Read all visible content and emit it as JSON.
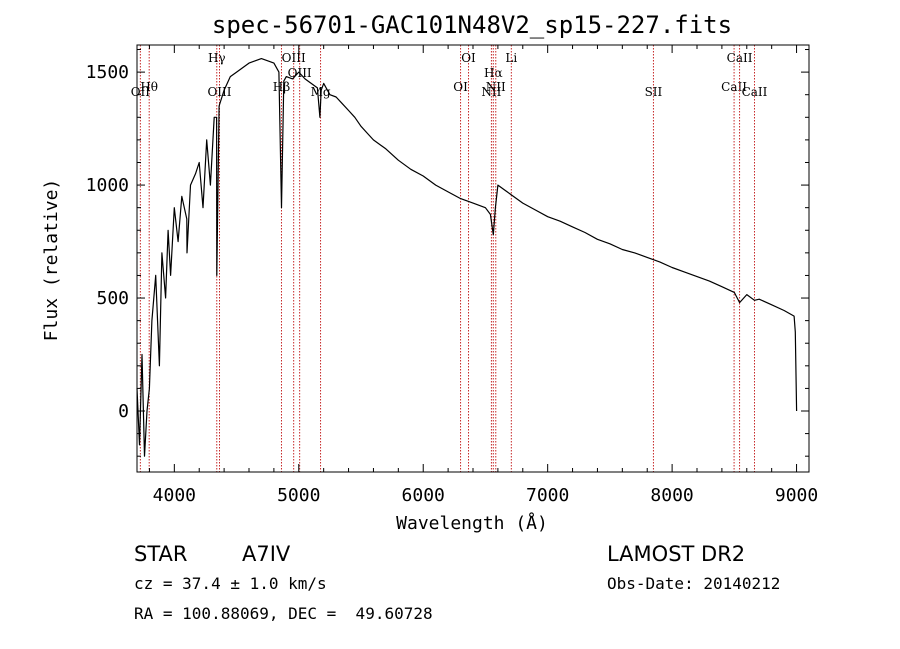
{
  "chart_data": {
    "type": "line",
    "title": "spec-56701-GAC101N48V2_sp15-227.fits",
    "xlabel": "Wavelength (Å)",
    "ylabel": "Flux (relative)",
    "xlim": [
      3700,
      9100
    ],
    "ylim": [
      -270,
      1620
    ],
    "x_ticks": [
      4000,
      5000,
      6000,
      7000,
      8000,
      9000
    ],
    "y_ticks": [
      0,
      500,
      1000,
      1500
    ],
    "grid": false,
    "series": [
      {
        "x": [
          3700,
          3720,
          3740,
          3760,
          3780,
          3800,
          3820,
          3850,
          3880,
          3900,
          3930,
          3950,
          3970,
          4000,
          4030,
          4060,
          4100,
          4102,
          4130,
          4170,
          4200,
          4230,
          4260,
          4290,
          4320,
          4340,
          4341,
          4360,
          4400,
          4450,
          4500,
          4550,
          4600,
          4650,
          4700,
          4750,
          4800,
          4840,
          4861,
          4880,
          4900,
          4950,
          5000,
          5050,
          5100,
          5150,
          5170,
          5180,
          5200,
          5250,
          5300,
          5350,
          5400,
          5450,
          5500,
          5550,
          5600,
          5700,
          5800,
          5900,
          6000,
          6100,
          6200,
          6300,
          6400,
          6500,
          6540,
          6563,
          6580,
          6600,
          6650,
          6700,
          6800,
          6900,
          7000,
          7100,
          7200,
          7300,
          7400,
          7500,
          7600,
          7700,
          7800,
          7900,
          8000,
          8100,
          8200,
          8300,
          8400,
          8500,
          8542,
          8600,
          8662,
          8700,
          8800,
          8900,
          8980,
          8990,
          9000
        ],
        "y": [
          100,
          -150,
          250,
          -200,
          0,
          100,
          400,
          600,
          200,
          700,
          500,
          800,
          600,
          900,
          750,
          950,
          850,
          700,
          1000,
          1050,
          1100,
          900,
          1200,
          1000,
          1300,
          1300,
          600,
          1350,
          1420,
          1480,
          1500,
          1520,
          1540,
          1550,
          1560,
          1550,
          1540,
          1500,
          900,
          1460,
          1480,
          1470,
          1500,
          1470,
          1450,
          1430,
          1300,
          1420,
          1450,
          1400,
          1390,
          1360,
          1330,
          1300,
          1260,
          1230,
          1200,
          1160,
          1110,
          1070,
          1040,
          1000,
          970,
          940,
          920,
          900,
          870,
          780,
          900,
          1000,
          980,
          960,
          920,
          890,
          860,
          840,
          815,
          790,
          760,
          740,
          715,
          700,
          680,
          660,
          635,
          615,
          595,
          575,
          550,
          525,
          480,
          515,
          490,
          495,
          470,
          445,
          420,
          350,
          0
        ]
      }
    ],
    "lines": [
      {
        "name": "OII",
        "x": 3727,
        "row": 3
      },
      {
        "name": "Hθ",
        "x": 3798,
        "row": 2
      },
      {
        "name": "Hγ",
        "x": 4341,
        "row": 0
      },
      {
        "name": "OIII",
        "x": 4363,
        "row": 3
      },
      {
        "name": "Hβ",
        "x": 4861,
        "row": 2
      },
      {
        "name": "OIII",
        "x": 4959,
        "row": 0
      },
      {
        "name": "OIII",
        "x": 5007,
        "row": 1
      },
      {
        "name": "Mg",
        "x": 5175,
        "row": 3
      },
      {
        "name": "OI",
        "x": 6300,
        "row": 2
      },
      {
        "name": "OI",
        "x": 6364,
        "row": 0
      },
      {
        "name": "NII",
        "x": 6548,
        "row": 3
      },
      {
        "name": "Hα",
        "x": 6563,
        "row": 1
      },
      {
        "name": "NII",
        "x": 6583,
        "row": 2
      },
      {
        "name": "Li",
        "x": 6708,
        "row": 0
      },
      {
        "name": "SII",
        "x": 7850,
        "row": 3
      },
      {
        "name": "CaII",
        "x": 8498,
        "row": 2
      },
      {
        "name": "CaII",
        "x": 8542,
        "row": 0
      },
      {
        "name": "CaII",
        "x": 8662,
        "row": 3
      }
    ]
  },
  "info": {
    "class": "STAR",
    "subclass": "A7IV",
    "survey": "LAMOST DR2",
    "cz": "cz = 37.4 ± 1.0 km/s",
    "obs_date": "Obs-Date: 20140212",
    "radec": "RA = 100.88069, DEC =  49.60728"
  },
  "colors": {
    "spectrum": "#000000",
    "line_marker": "#c62828"
  }
}
